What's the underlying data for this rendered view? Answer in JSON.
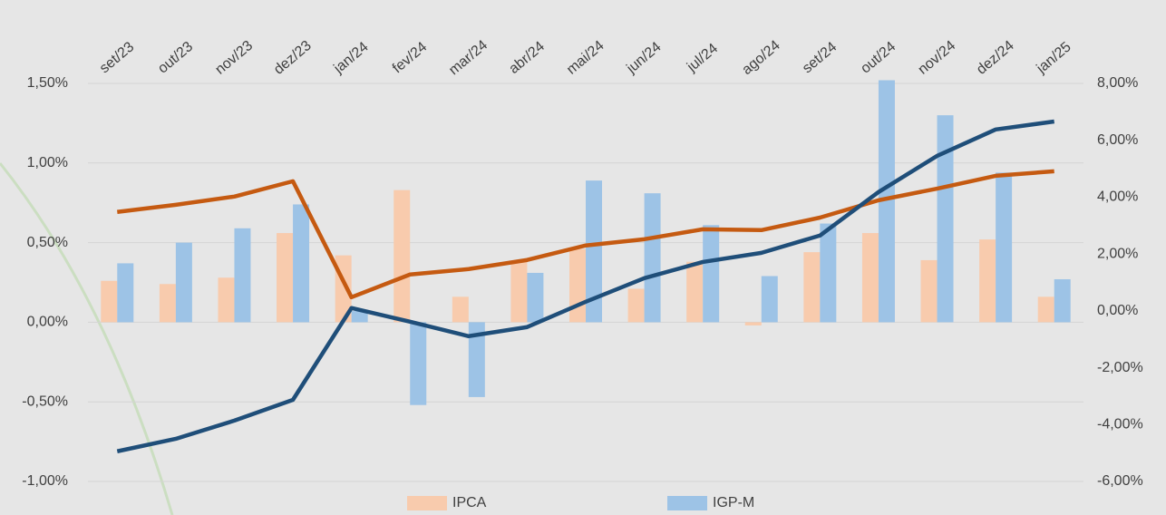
{
  "chart_data": {
    "type": "bar",
    "categories": [
      "set/23",
      "out/23",
      "nov/23",
      "dez/23",
      "jan/24",
      "fev/24",
      "mar/24",
      "abr/24",
      "mai/24",
      "jun/24",
      "jul/24",
      "ago/24",
      "set/24",
      "out/24",
      "nov/24",
      "dez/24",
      "jan/25"
    ],
    "series": [
      {
        "name": "IPCA",
        "type": "bar",
        "color": "#f8cbad",
        "values": [
          0.26,
          0.24,
          0.28,
          0.56,
          0.42,
          0.83,
          0.16,
          0.38,
          0.46,
          0.21,
          0.38,
          -0.02,
          0.44,
          0.56,
          0.39,
          0.52,
          0.16
        ]
      },
      {
        "name": "IGP-M",
        "type": "bar",
        "color": "#9dc3e6",
        "values": [
          0.37,
          0.5,
          0.59,
          0.74,
          0.07,
          -0.52,
          -0.47,
          0.31,
          0.89,
          0.81,
          0.61,
          0.29,
          0.62,
          1.52,
          1.3,
          0.94,
          0.27
        ]
      },
      {
        "type": "line",
        "axis": "y2",
        "color": "#c55a11",
        "values": [
          3.48,
          3.73,
          4.02,
          4.56,
          0.48,
          1.28,
          1.47,
          1.79,
          2.3,
          2.52,
          2.87,
          2.84,
          3.28,
          3.89,
          4.3,
          4.75,
          4.91
        ]
      },
      {
        "type": "line",
        "axis": "y2",
        "color": "#1f4e79",
        "values": [
          -4.94,
          -4.5,
          -3.86,
          -3.13,
          0.1,
          -0.38,
          -0.89,
          -0.57,
          0.32,
          1.15,
          1.72,
          2.04,
          2.65,
          4.18,
          5.45,
          6.38,
          6.66
        ]
      }
    ],
    "ylim": [
      -1.0,
      1.5
    ],
    "yticks": [
      {
        "value": -1.0,
        "label": "-1,00%"
      },
      {
        "value": -0.5,
        "label": "-0,50%"
      },
      {
        "value": 0,
        "label": "0,00%"
      },
      {
        "value": 0.5,
        "label": "0,50%"
      },
      {
        "value": 1.0,
        "label": "1,00%"
      },
      {
        "value": 1.5,
        "label": "1,50%"
      }
    ],
    "y2lim": [
      -6,
      8
    ],
    "y2ticks": [
      {
        "value": -6,
        "label": "-6,00%"
      },
      {
        "value": -4,
        "label": "-4,00%"
      },
      {
        "value": -2,
        "label": "-2,00%"
      },
      {
        "value": 0,
        "label": "0,00%"
      },
      {
        "value": 2,
        "label": "2,00%"
      },
      {
        "value": 4,
        "label": "4,00%"
      },
      {
        "value": 6,
        "label": "6,00%"
      },
      {
        "value": 8,
        "label": "8,00%"
      }
    ],
    "grid": true,
    "legend": "bottom"
  }
}
